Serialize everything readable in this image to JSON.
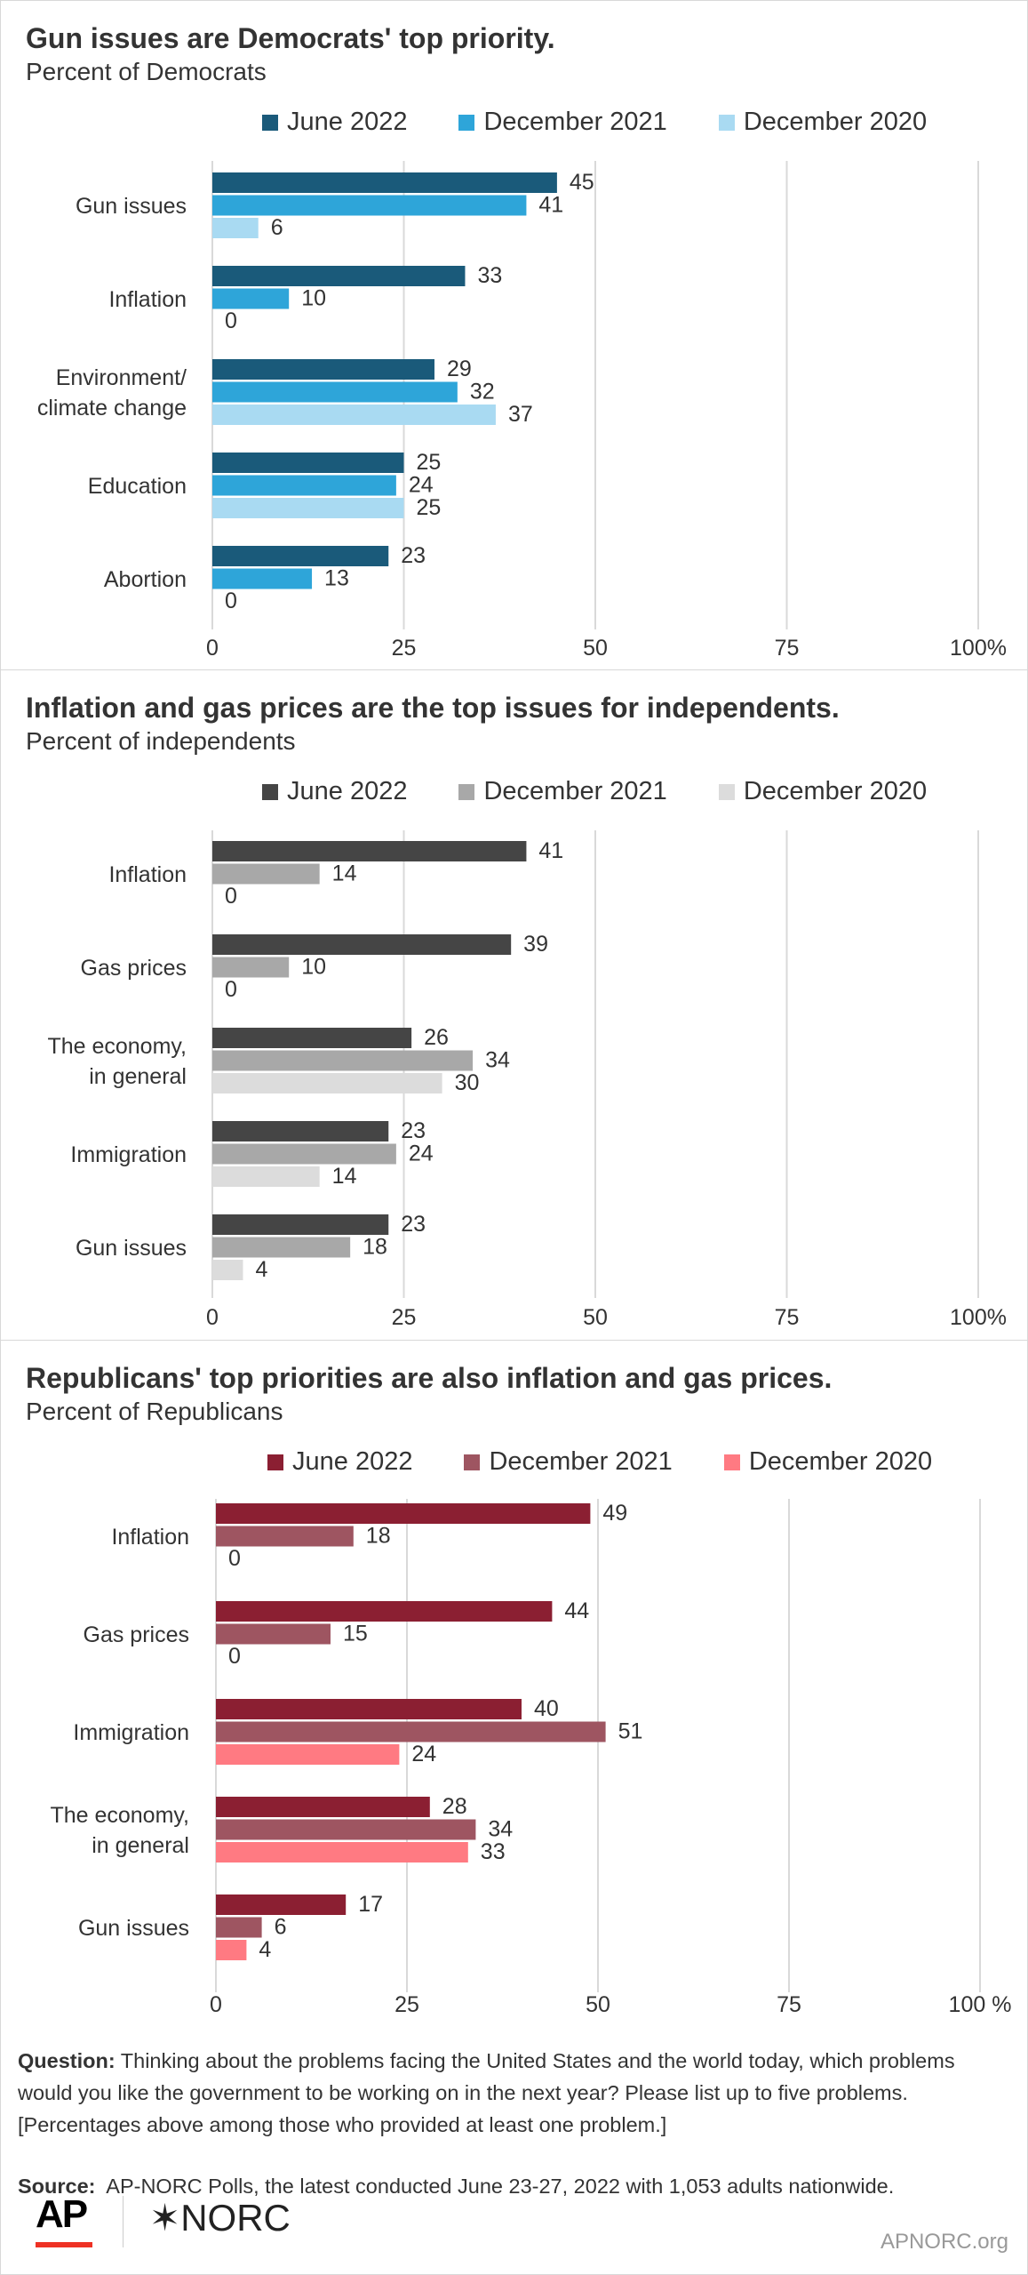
{
  "chart_data": [
    {
      "type": "bar",
      "title": "Gun issues are Democrats' top priority.",
      "subtitle": "Percent of Democrats",
      "categories": [
        "Gun issues",
        "Inflation",
        "Environment/\nclimate change",
        "Education",
        "Abortion"
      ],
      "series": [
        {
          "name": "June 2022",
          "color": "#1a5a7a",
          "values": [
            45,
            33,
            29,
            25,
            23
          ]
        },
        {
          "name": "December 2021",
          "color": "#2ea5d9",
          "values": [
            41,
            10,
            32,
            24,
            13
          ]
        },
        {
          "name": "December 2020",
          "color": "#a9daf2",
          "values": [
            6,
            0,
            37,
            25,
            0
          ]
        }
      ],
      "xlim": [
        0,
        100
      ],
      "xticks": [
        "0",
        "25",
        "50",
        "75",
        "100%"
      ],
      "grid": true,
      "legend": "top"
    },
    {
      "type": "bar",
      "title": "Inflation and gas prices are the top issues for independents.",
      "subtitle": "Percent of independents",
      "categories": [
        "Inflation",
        "Gas prices",
        "The economy,\nin general",
        "Immigration",
        "Gun issues"
      ],
      "series": [
        {
          "name": "June 2022",
          "color": "#454545",
          "values": [
            41,
            39,
            26,
            23,
            23
          ]
        },
        {
          "name": "December 2021",
          "color": "#a8a8a8",
          "values": [
            14,
            10,
            34,
            24,
            18
          ]
        },
        {
          "name": "December 2020",
          "color": "#dcdcdc",
          "values": [
            0,
            0,
            30,
            14,
            4
          ]
        }
      ],
      "xlim": [
        0,
        100
      ],
      "xticks": [
        "0",
        "25",
        "50",
        "75",
        "100%"
      ],
      "grid": true,
      "legend": "top"
    },
    {
      "type": "bar",
      "title": "Republicans' top priorities are also inflation and gas prices.",
      "subtitle": "Percent of Republicans",
      "categories": [
        "Inflation",
        "Gas prices",
        "Immigration",
        "The economy,\nin general",
        "Gun issues"
      ],
      "series": [
        {
          "name": "June 2022",
          "color": "#8b1f32",
          "values": [
            49,
            44,
            40,
            28,
            17
          ]
        },
        {
          "name": "December 2021",
          "color": "#9e5561",
          "values": [
            18,
            15,
            51,
            34,
            6
          ]
        },
        {
          "name": "December 2020",
          "color": "#ff7a82",
          "values": [
            0,
            0,
            24,
            33,
            4
          ]
        }
      ],
      "xlim": [
        0,
        100
      ],
      "xticks": [
        "0",
        "25",
        "50",
        "75",
        "100 %"
      ],
      "grid": true,
      "legend": "top"
    }
  ],
  "footer": {
    "question_label": "Question:",
    "question_text": "Thinking about the problems facing the United States and the world today, which problems would you like the government to be working on in the next year? Please list up to five problems. [Percentages above among those who provided at least one problem.]",
    "source_label": "Source:",
    "source_text": "AP-NORC Polls, the latest conducted June 23-27, 2022 with 1,053 adults nationwide.",
    "logo_ap": "AP",
    "logo_norc": "✶NORC",
    "credit": "APNORC.org"
  }
}
